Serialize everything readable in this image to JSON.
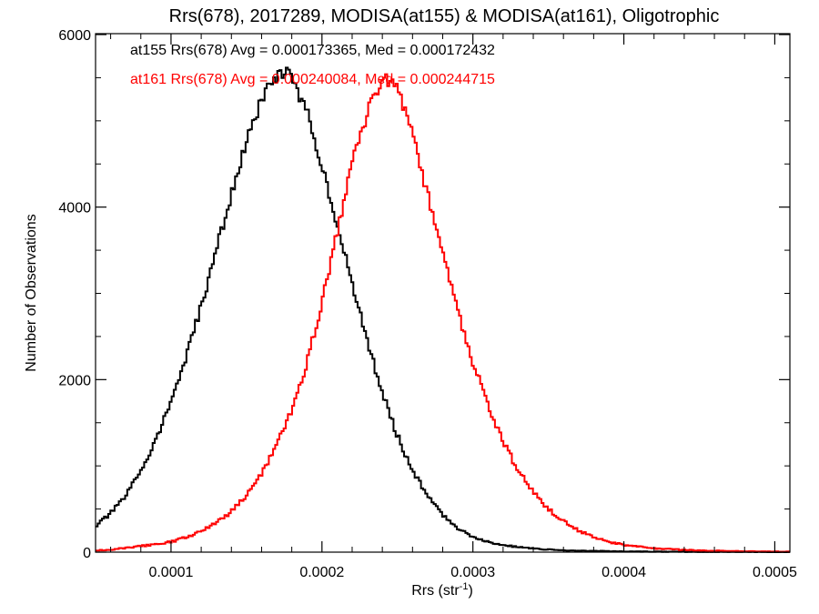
{
  "chart_data": {
    "type": "line",
    "title": "Rrs(678), 2017289, MODISA(at155) & MODISA(at161), Oligotrophic",
    "xlabel": "Rrs (str",
    "xlabel_sup": "-1",
    "xlabel_close": ")",
    "ylabel": "Number of Observations",
    "xlim": [
      5e-05,
      0.00051
    ],
    "ylim": [
      0,
      6000
    ],
    "x_ticks": [
      0.0001,
      0.0002,
      0.0003,
      0.0004,
      0.0005
    ],
    "x_tick_labels": [
      "0.0001",
      "0.0002",
      "0.0003",
      "0.0004",
      "0.0005"
    ],
    "y_ticks": [
      0,
      2000,
      4000,
      6000
    ],
    "y_tick_labels": [
      "0",
      "2000",
      "4000",
      "6000"
    ],
    "grid": false,
    "series": [
      {
        "color": "#000000",
        "points": [
          [
            5e-05,
            300
          ],
          [
            6e-05,
            450
          ],
          [
            7e-05,
            650
          ],
          [
            8e-05,
            950
          ],
          [
            9e-05,
            1300
          ],
          [
            0.0001,
            1750
          ],
          [
            0.00011,
            2250
          ],
          [
            0.00012,
            2850
          ],
          [
            0.00013,
            3500
          ],
          [
            0.00014,
            4150
          ],
          [
            0.00015,
            4750
          ],
          [
            0.00016,
            5250
          ],
          [
            0.00017,
            5500
          ],
          [
            0.000175,
            5600
          ],
          [
            0.00018,
            5480
          ],
          [
            0.00019,
            5100
          ],
          [
            0.0002,
            4500
          ],
          [
            0.00021,
            3800
          ],
          [
            0.00022,
            3100
          ],
          [
            0.00023,
            2450
          ],
          [
            0.00024,
            1850
          ],
          [
            0.00025,
            1350
          ],
          [
            0.00026,
            950
          ],
          [
            0.00027,
            650
          ],
          [
            0.00028,
            430
          ],
          [
            0.00029,
            280
          ],
          [
            0.0003,
            180
          ],
          [
            0.00031,
            120
          ],
          [
            0.00032,
            80
          ],
          [
            0.00034,
            40
          ],
          [
            0.00036,
            20
          ],
          [
            0.0004,
            8
          ],
          [
            0.00045,
            3
          ],
          [
            0.00051,
            1
          ]
        ]
      },
      {
        "color": "#ff0000",
        "points": [
          [
            5e-05,
            20
          ],
          [
            6e-05,
            30
          ],
          [
            7e-05,
            50
          ],
          [
            8e-05,
            70
          ],
          [
            9e-05,
            90
          ],
          [
            0.0001,
            120
          ],
          [
            0.00011,
            170
          ],
          [
            0.00012,
            240
          ],
          [
            0.00013,
            340
          ],
          [
            0.00014,
            470
          ],
          [
            0.00015,
            650
          ],
          [
            0.00016,
            900
          ],
          [
            0.00017,
            1230
          ],
          [
            0.00018,
            1650
          ],
          [
            0.00019,
            2200
          ],
          [
            0.0002,
            2900
          ],
          [
            0.00021,
            3700
          ],
          [
            0.00022,
            4500
          ],
          [
            0.00023,
            5100
          ],
          [
            0.00024,
            5450
          ],
          [
            0.000245,
            5480
          ],
          [
            0.00025,
            5350
          ],
          [
            0.00026,
            4850
          ],
          [
            0.00027,
            4150
          ],
          [
            0.00028,
            3450
          ],
          [
            0.00029,
            2800
          ],
          [
            0.0003,
            2200
          ],
          [
            0.00031,
            1700
          ],
          [
            0.00032,
            1280
          ],
          [
            0.00033,
            950
          ],
          [
            0.00034,
            700
          ],
          [
            0.00035,
            500
          ],
          [
            0.00036,
            360
          ],
          [
            0.00037,
            250
          ],
          [
            0.00038,
            175
          ],
          [
            0.00039,
            120
          ],
          [
            0.0004,
            85
          ],
          [
            0.00042,
            45
          ],
          [
            0.00044,
            25
          ],
          [
            0.00047,
            12
          ],
          [
            0.00051,
            5
          ]
        ]
      }
    ],
    "annotations": [
      {
        "text": "at155 Rrs(678) Avg = 0.000173365, Med = 0.000172432",
        "color": "#000000"
      },
      {
        "text": "at161 Rrs(678) Avg = 0.000240084, Med = 0.000244715",
        "color": "#ff0000"
      }
    ]
  }
}
